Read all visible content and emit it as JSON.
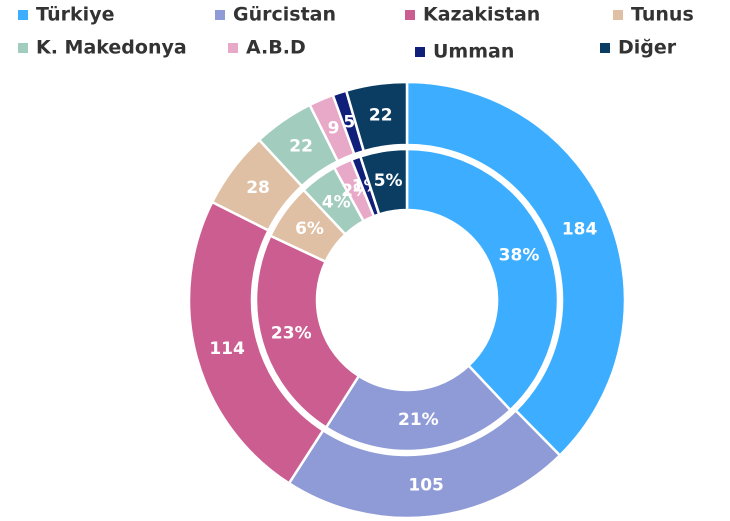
{
  "chart_data": {
    "type": "donut",
    "categories": [
      "Türkiye",
      "Gürcistan",
      "Kazakistan",
      "Tunus",
      "K. Makedonya",
      "A.B.D",
      "Umman",
      "Diğer"
    ],
    "colors": [
      "#3daeff",
      "#8f9bd6",
      "#cc5d91",
      "#e0c0a4",
      "#a2cdbe",
      "#e8a8c8",
      "#10207a",
      "#0b3d63"
    ],
    "rings": [
      {
        "values": [
          184,
          105,
          114,
          28,
          22,
          9,
          5,
          22
        ]
      },
      {
        "values": [
          38,
          21,
          23,
          6,
          4,
          2,
          1,
          5
        ],
        "value_labels": [
          "38%",
          "21%",
          "23%",
          "6%",
          "4%",
          "2%",
          "1%",
          "5%"
        ]
      }
    ]
  }
}
